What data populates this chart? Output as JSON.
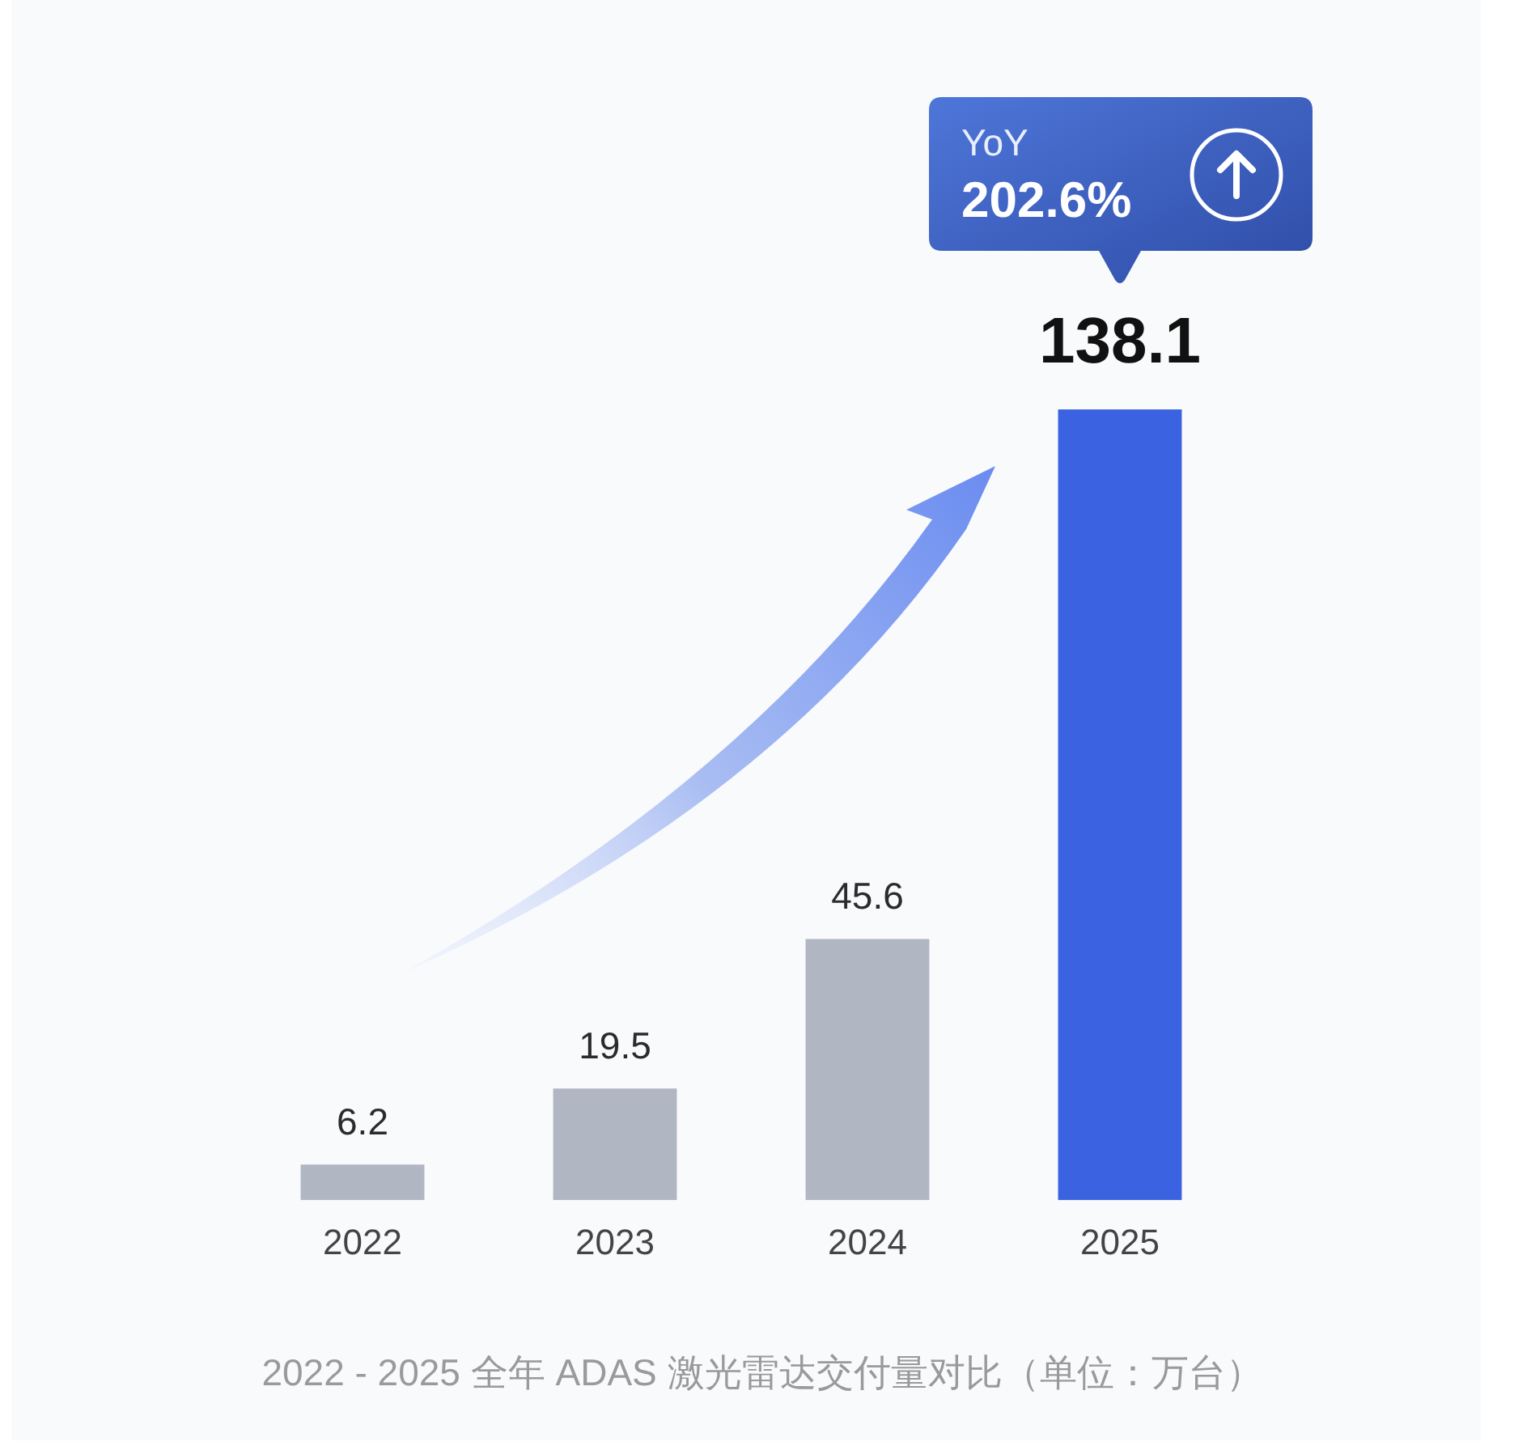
{
  "chart_data": {
    "type": "bar",
    "categories": [
      "2022",
      "2023",
      "2024",
      "2025"
    ],
    "values": [
      6.2,
      19.5,
      45.6,
      138.1
    ],
    "colors": [
      "#b1b6c3",
      "#b1b6c3",
      "#b1b6c3",
      "#3b62e0"
    ],
    "data_labels": true,
    "tick_labels": "x",
    "grid": false,
    "legend": false,
    "annotations": [
      "YoY 202.6%",
      "2022 - 2025 全年 ADAS 激光雷达交付量对比（单位：万台）"
    ]
  }
}
